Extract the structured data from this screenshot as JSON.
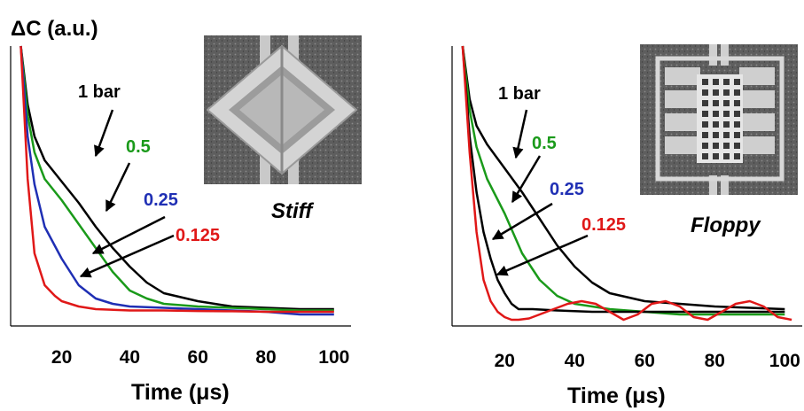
{
  "y_axis_label": "ΔC (a.u.)",
  "colors": {
    "black": "#000000",
    "green": "#1a9a1a",
    "blue": "#1f2fb4",
    "red": "#e01818"
  },
  "chart_data": [
    {
      "type": "line",
      "tag": "Stiff",
      "xlabel": "Time (μs)",
      "ylabel": "ΔC (a.u.)",
      "xlim": [
        5,
        105
      ],
      "ylim": [
        0,
        1
      ],
      "xticks": [
        "20",
        "40",
        "60",
        "80",
        "100"
      ],
      "inset": "photo of stiff square MEMS diaphragm (rotated 45°)",
      "series": [
        {
          "name": "1 bar",
          "color": "black",
          "x": [
            8,
            10,
            12,
            15,
            20,
            25,
            30,
            35,
            40,
            45,
            50,
            60,
            70,
            80,
            90,
            100
          ],
          "y": [
            1.0,
            0.78,
            0.66,
            0.57,
            0.49,
            0.41,
            0.32,
            0.24,
            0.17,
            0.11,
            0.07,
            0.04,
            0.02,
            0.015,
            0.01,
            0.01
          ]
        },
        {
          "name": "0.5",
          "color": "green",
          "x": [
            8,
            10,
            12,
            15,
            20,
            25,
            30,
            35,
            40,
            45,
            50,
            60,
            70,
            80,
            90,
            100
          ],
          "y": [
            1.0,
            0.74,
            0.6,
            0.5,
            0.42,
            0.33,
            0.24,
            0.15,
            0.08,
            0.05,
            0.03,
            0.02,
            0.015,
            0.01,
            0.005,
            0.005
          ]
        },
        {
          "name": "0.25",
          "color": "blue",
          "x": [
            8,
            10,
            12,
            15,
            20,
            25,
            30,
            35,
            40,
            50,
            60,
            70,
            80,
            90,
            100
          ],
          "y": [
            1.0,
            0.66,
            0.48,
            0.32,
            0.2,
            0.1,
            0.05,
            0.03,
            0.02,
            0.015,
            0.01,
            0.005,
            0.0,
            -0.01,
            -0.01
          ]
        },
        {
          "name": "0.125",
          "color": "red",
          "x": [
            8,
            10,
            12,
            15,
            18,
            20,
            25,
            30,
            40,
            50,
            60,
            70,
            80,
            90,
            100
          ],
          "y": [
            1.0,
            0.5,
            0.22,
            0.1,
            0.06,
            0.04,
            0.02,
            0.01,
            0.005,
            0.005,
            0.003,
            0.002,
            0.0,
            0.0,
            0.0
          ]
        }
      ]
    },
    {
      "type": "line",
      "tag": "Floppy",
      "xlabel": "Time (μs)",
      "ylabel": "",
      "xlim": [
        5,
        105
      ],
      "ylim": [
        0,
        1
      ],
      "xticks": [
        "20",
        "40",
        "60",
        "80",
        "100"
      ],
      "inset": "photo of floppy MEMS diaphragm with perforated plate and folded springs",
      "series": [
        {
          "name": "1 bar",
          "color": "black",
          "x": [
            8,
            10,
            12,
            15,
            20,
            25,
            30,
            35,
            40,
            45,
            50,
            60,
            70,
            80,
            90,
            100
          ],
          "y": [
            1.0,
            0.8,
            0.7,
            0.63,
            0.54,
            0.45,
            0.35,
            0.25,
            0.17,
            0.11,
            0.07,
            0.04,
            0.03,
            0.02,
            0.015,
            0.01
          ]
        },
        {
          "name": "0.5",
          "color": "green",
          "x": [
            8,
            10,
            12,
            15,
            20,
            25,
            30,
            35,
            40,
            45,
            50,
            60,
            70,
            80,
            90,
            100
          ],
          "y": [
            1.0,
            0.76,
            0.62,
            0.5,
            0.37,
            0.22,
            0.12,
            0.06,
            0.03,
            0.02,
            0.01,
            0.0,
            -0.01,
            -0.01,
            -0.01,
            -0.01
          ]
        },
        {
          "name": "0.25",
          "color": "black",
          "x": [
            8,
            10,
            12,
            14,
            16,
            18,
            20,
            22,
            24,
            26,
            28,
            35,
            45,
            55,
            65,
            75,
            85,
            95,
            100
          ],
          "y": [
            1.0,
            0.66,
            0.45,
            0.3,
            0.2,
            0.12,
            0.07,
            0.03,
            0.01,
            0.01,
            0.01,
            0.005,
            0.0,
            0.0,
            0.0,
            0.0,
            0.0,
            0.0,
            0.0
          ]
        },
        {
          "name": "0.125",
          "color": "red",
          "x": [
            8,
            10,
            12,
            14,
            16,
            18,
            20,
            22,
            24,
            27,
            30,
            34,
            38,
            42,
            46,
            50,
            54,
            58,
            62,
            66,
            70,
            74,
            78,
            82,
            86,
            90,
            94,
            98,
            102
          ],
          "y": [
            1.0,
            0.6,
            0.3,
            0.12,
            0.04,
            0.0,
            -0.02,
            -0.03,
            -0.03,
            -0.025,
            -0.01,
            0.01,
            0.03,
            0.04,
            0.03,
            0.0,
            -0.03,
            -0.01,
            0.03,
            0.04,
            0.02,
            -0.02,
            -0.03,
            0.0,
            0.03,
            0.04,
            0.02,
            -0.02,
            -0.03
          ]
        }
      ]
    }
  ]
}
